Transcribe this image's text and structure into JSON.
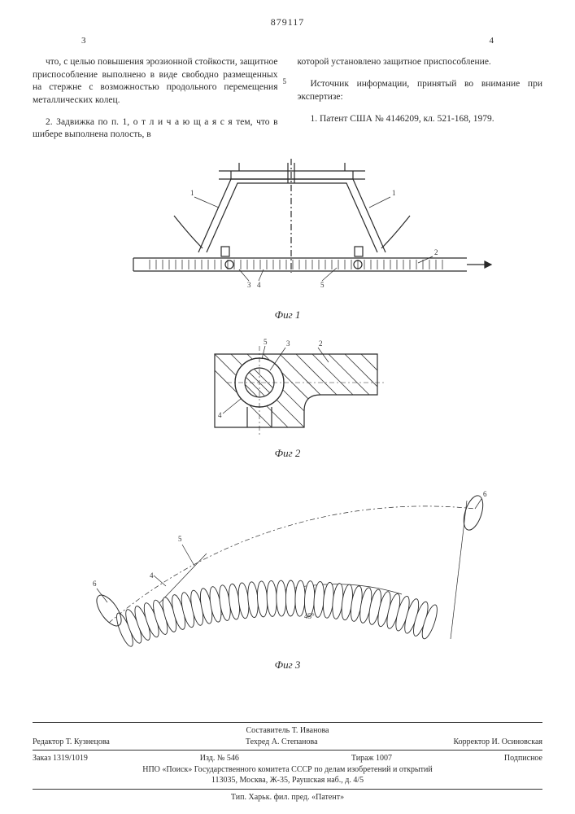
{
  "doc_number": "879117",
  "page_left_num": "3",
  "page_right_num": "4",
  "line_marker": "5",
  "col_left": {
    "p1": "что, с целью повышения эрозионной стойкости, защитное приспособление выполнено в виде свободно размещенных на стержне с возможностью продольного перемещения металлических колец.",
    "p2": "2. Задвижка по п. 1, о т л и ч а ю щ а я с я тем, что в шибере выполнена полость, в"
  },
  "col_right": {
    "p1": "которой установлено защитное приспособление.",
    "p2": "Источник информации, принятый во внимание при экспертизе:",
    "p3": "1. Патент США № 4146209, кл. 521-168, 1979."
  },
  "fig1": {
    "caption": "Фиг 1",
    "refs": [
      "1",
      "1",
      "2",
      "3",
      "4",
      "5"
    ],
    "stroke": "#2a2a2a",
    "hatch": "#3a3a3a"
  },
  "fig2": {
    "caption": "Фиг 2",
    "refs": [
      "2",
      "3",
      "4",
      "5"
    ],
    "stroke": "#2a2a2a"
  },
  "fig3": {
    "caption": "Фиг 3",
    "refs": [
      "4",
      "5",
      "6",
      "6"
    ],
    "angle_label": "45°",
    "coil_count": 34,
    "stroke": "#2a2a2a"
  },
  "footer": {
    "compiler": "Составитель Т. Иванова",
    "editor": "Редактор Т. Кузнецова",
    "techred": "Техред А. Степанова",
    "corrector": "Корректор И. Осиновская",
    "order": "Заказ 1319/1019",
    "izd": "Изд. № 546",
    "tirazh": "Тираж 1007",
    "sign": "Подписное",
    "org": "НПО «Поиск» Государственного комитета СССР по делам изобретений и открытий",
    "addr": "113035, Москва, Ж-35, Раушская наб., д. 4/5",
    "printer": "Тип. Харьк. фил. пред. «Патент»"
  }
}
